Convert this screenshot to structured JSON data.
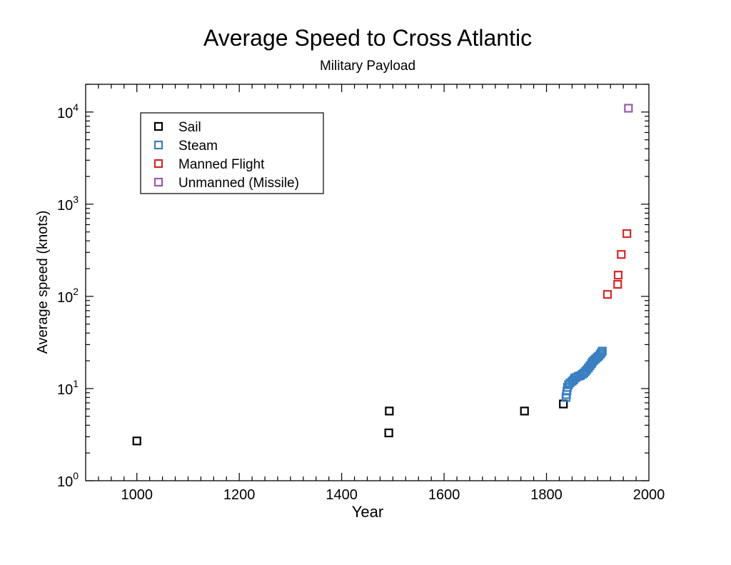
{
  "chart_data": {
    "type": "scatter",
    "title": "Average Speed to Cross Atlantic",
    "subtitle": "Military Payload",
    "xlabel": "Year",
    "ylabel": "Average speed (knots)",
    "xlim": [
      900,
      2000
    ],
    "ylim": [
      1,
      20000
    ],
    "yscale": "log",
    "x_ticks": [
      1000,
      1200,
      1400,
      1600,
      1800,
      2000
    ],
    "x_tick_labels": [
      "1000",
      "1200",
      "1400",
      "1600",
      "1800",
      "2000"
    ],
    "y_ticks": [
      {
        "value": 1,
        "base": "10",
        "exp": "0"
      },
      {
        "value": 10,
        "base": "10",
        "exp": "1"
      },
      {
        "value": 100,
        "base": "10",
        "exp": "2"
      },
      {
        "value": 1000,
        "base": "10",
        "exp": "3"
      },
      {
        "value": 10000,
        "base": "10",
        "exp": "4"
      }
    ],
    "legend_position": "top-left",
    "series": [
      {
        "name": "Sail",
        "color": "#000000",
        "points": [
          [
            1000,
            2.7
          ],
          [
            1492,
            3.3
          ],
          [
            1493,
            5.7
          ],
          [
            1757,
            5.7
          ],
          [
            1833,
            6.8
          ]
        ]
      },
      {
        "name": "Steam",
        "color": "#3a7fc1",
        "points": [
          [
            1838,
            8.0
          ],
          [
            1839,
            8.6
          ],
          [
            1840,
            9.4
          ],
          [
            1841,
            10.3
          ],
          [
            1843,
            11.0
          ],
          [
            1846,
            11.5
          ],
          [
            1850,
            12.0
          ],
          [
            1853,
            12.4
          ],
          [
            1855,
            13.0
          ],
          [
            1858,
            13.2
          ],
          [
            1862,
            13.6
          ],
          [
            1866,
            13.8
          ],
          [
            1870,
            14.3
          ],
          [
            1873,
            14.7
          ],
          [
            1876,
            15.3
          ],
          [
            1879,
            16.0
          ],
          [
            1882,
            16.8
          ],
          [
            1885,
            17.7
          ],
          [
            1888,
            18.6
          ],
          [
            1890,
            19.5
          ],
          [
            1893,
            20.3
          ],
          [
            1896,
            21.0
          ],
          [
            1899,
            21.8
          ],
          [
            1902,
            22.5
          ],
          [
            1905,
            23.5
          ],
          [
            1907,
            24.5
          ],
          [
            1909,
            25.5
          ]
        ]
      },
      {
        "name": "Manned Flight",
        "color": "#d62728",
        "points": [
          [
            1919,
            105
          ],
          [
            1939,
            135
          ],
          [
            1940,
            170
          ],
          [
            1946,
            285
          ],
          [
            1957,
            480
          ]
        ]
      },
      {
        "name": "Unmanned (Missile)",
        "color": "#9b59b6",
        "points": [
          [
            1960,
            11000
          ]
        ]
      }
    ]
  }
}
